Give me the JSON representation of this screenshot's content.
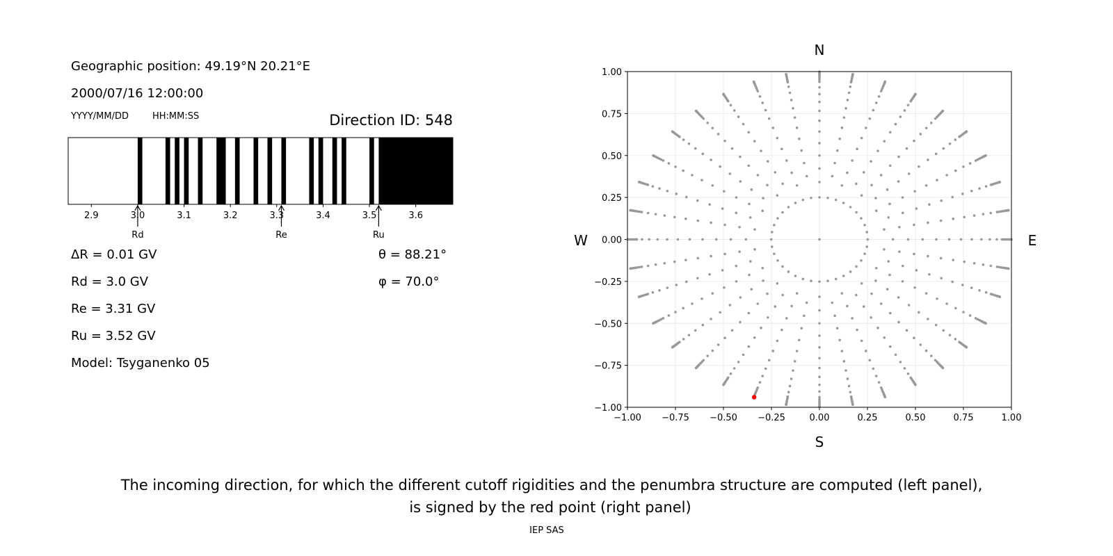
{
  "left_panel": {
    "geo_position": "Geographic position: 49.19°N 20.21°E",
    "datetime": "2000/07/16 12:00:00",
    "date_format": "YYYY/MM/DD",
    "time_format": "HH:MM:SS",
    "direction_id": "Direction ID: 548",
    "params": {
      "delta_r": "ΔR = 0.01 GV",
      "rd": "Rd = 3.0 GV",
      "re": "Re = 3.31 GV",
      "ru": "Ru = 3.52 GV",
      "model": "Model: Tsyganenko 05",
      "theta": "θ = 88.21°",
      "phi": "φ = 70.0°"
    }
  },
  "chart_data": [
    {
      "type": "bar",
      "xlim": [
        2.85,
        3.68
      ],
      "xticks": [
        "2.9",
        "3.0",
        "3.1",
        "3.2",
        "3.3",
        "3.4",
        "3.5",
        "3.6"
      ],
      "xtick_values": [
        2.9,
        3.0,
        3.1,
        3.2,
        3.3,
        3.4,
        3.5,
        3.6
      ],
      "black_bands": [
        [
          3.0,
          3.01
        ],
        [
          3.06,
          3.07
        ],
        [
          3.08,
          3.09
        ],
        [
          3.1,
          3.11
        ],
        [
          3.13,
          3.14
        ],
        [
          3.17,
          3.19
        ],
        [
          3.21,
          3.22
        ],
        [
          3.25,
          3.26
        ],
        [
          3.28,
          3.29
        ],
        [
          3.31,
          3.32
        ],
        [
          3.37,
          3.38
        ],
        [
          3.39,
          3.4
        ],
        [
          3.42,
          3.43
        ],
        [
          3.44,
          3.45
        ],
        [
          3.5,
          3.51
        ],
        [
          3.52,
          3.68
        ]
      ],
      "markers": [
        {
          "label": "Rd",
          "value": 3.0
        },
        {
          "label": "Re",
          "value": 3.31
        },
        {
          "label": "Ru",
          "value": 3.52
        }
      ],
      "colors": {
        "band": "#000000",
        "background": "#ffffff"
      }
    },
    {
      "type": "scatter",
      "xlim": [
        -1.0,
        1.0
      ],
      "ylim": [
        -1.0,
        1.0
      ],
      "xticks": [
        "−1.00",
        "−0.75",
        "−0.50",
        "−0.25",
        "0.00",
        "0.25",
        "0.50",
        "0.75",
        "1.00"
      ],
      "yticks": [
        "−1.00",
        "−0.75",
        "−0.50",
        "−0.25",
        "0.00",
        "0.25",
        "0.50",
        "0.75",
        "1.00"
      ],
      "tick_values": [
        -1,
        -0.75,
        -0.5,
        -0.25,
        0,
        0.25,
        0.5,
        0.75,
        1
      ],
      "grid": true,
      "compass": {
        "north": "N",
        "south": "S",
        "west": "W",
        "east": "E"
      },
      "grid_points": {
        "azimuths_deg_step": 10,
        "zenith_deg": [
          20,
          25,
          30,
          35,
          40,
          45,
          50,
          55,
          60,
          65,
          70,
          72,
          74,
          76,
          78,
          80,
          82,
          84,
          86,
          88,
          90
        ],
        "inner_ring_zenith_deg": 15,
        "center": [
          0,
          0
        ],
        "color": "#999999"
      },
      "selected_point": {
        "x": -0.34,
        "y": -0.94,
        "color": "#ff0000"
      }
    }
  ],
  "caption": {
    "line1": "The incoming direction, for which the different cutoff rigidities and the penumbra structure are computed (left panel),",
    "line2": "is signed by the red point (right panel)",
    "credit": "IEP SAS"
  }
}
